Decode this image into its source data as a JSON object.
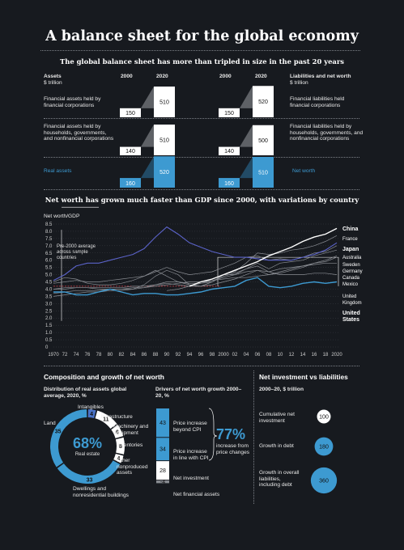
{
  "header": {
    "title": "A balance sheet for the global economy",
    "subtitle": "The global balance sheet has more than tripled in size in the past 20 years"
  },
  "balance": {
    "assets_heading": "Assets",
    "assets_unit": "$ trillion",
    "liab_heading": "Liabilities and net worth",
    "liab_unit": "$ trillion",
    "year_a": "2000",
    "year_b": "2020",
    "rows": [
      {
        "left_label": "Financial assets held by financial corporations",
        "a2000": 150,
        "a2020": 510,
        "right_label": "Financial liabilities held financial corporations",
        "l2000": 150,
        "l2020": 520
      },
      {
        "left_label": "Financial assets held by households, governments, and nonfinancial corporations",
        "a2000": 140,
        "a2020": 510,
        "right_label": "Financial liabilities held by households, governments, and nonfinancial corporations",
        "l2000": 140,
        "l2020": 500
      },
      {
        "left_label": "Real assets",
        "a2000": 160,
        "a2020": 520,
        "right_label": "Net worth",
        "l2000": 160,
        "l2020": 510
      }
    ],
    "accent": "#3d9ad1"
  },
  "networth": {
    "title": "Net worth has grown much faster than GDP since 2000, with variations by country",
    "axis_label": "Net worth/GDP",
    "avg_note": "Pre-2000 average across sample countries",
    "countries": [
      "China",
      "France",
      "Japan",
      "Australia",
      "Sweden",
      "Germany",
      "Canada",
      "Mexico",
      "United Kingdom",
      "United States"
    ]
  },
  "composition": {
    "title": "Composition and growth of net worth",
    "dist_title": "Distribution of real assets global average, 2020, %",
    "center_value": "68%",
    "center_label": "Real estate",
    "seg_labels": {
      "land": "Land",
      "intangibles": "Intangibles",
      "infrastructure": "Infrastructure",
      "machinery": "Machinery and equipment",
      "inventories": "Inventories",
      "other": "Other nonproduced assets",
      "dwellings": "Dwellings and nonresidential buildings"
    },
    "drivers_title": "Drivers of net worth growth 2000–20, %",
    "drivers": [
      {
        "value": 43,
        "label": "Price increase beyond CPI"
      },
      {
        "value": 34,
        "label": "Price increase in line with CPI"
      },
      {
        "value": 28,
        "label": "Net investment"
      },
      {
        "value": -4,
        "label": "Net financial assets"
      }
    ],
    "price_share": "77%",
    "price_share_label": "increase from price changes"
  },
  "netinv": {
    "title": "Net investment vs liabilities",
    "subtitle": "2000–20, $ trillion",
    "items": [
      {
        "label": "Cumulative net investment",
        "value": 100
      },
      {
        "label": "Growth in debt",
        "value": 180
      },
      {
        "label": "Growth in overall liabilities, including debt",
        "value": 360
      }
    ]
  },
  "chart_data": [
    {
      "type": "bar",
      "title": "The global balance sheet has more than tripled in size in the past 20 years",
      "ylabel": "$ trillion",
      "categories": [
        "2000",
        "2020"
      ],
      "series": [
        {
          "name": "Financial assets held by financial corporations",
          "values": [
            150,
            510
          ]
        },
        {
          "name": "Financial assets held by households, governments, and nonfinancial corporations",
          "values": [
            140,
            510
          ]
        },
        {
          "name": "Real assets",
          "values": [
            160,
            520
          ]
        },
        {
          "name": "Financial liabilities held financial corporations",
          "values": [
            150,
            520
          ]
        },
        {
          "name": "Financial liabilities held by households, governments, and nonfinancial corporations",
          "values": [
            140,
            500
          ]
        },
        {
          "name": "Net worth",
          "values": [
            160,
            510
          ]
        }
      ]
    },
    {
      "type": "line",
      "title": "Net worth has grown much faster than GDP since 2000, with variations by country",
      "ylabel": "Net worth/GDP",
      "x": [
        1970,
        1972,
        1974,
        1976,
        1978,
        1980,
        1982,
        1984,
        1986,
        1988,
        1990,
        1992,
        1994,
        1996,
        1998,
        2000,
        2002,
        2004,
        2006,
        2008,
        2010,
        2012,
        2014,
        2016,
        2018,
        2020
      ],
      "xticks": [
        "1970",
        "72",
        "74",
        "76",
        "78",
        "80",
        "82",
        "84",
        "86",
        "88",
        "90",
        "92",
        "94",
        "96",
        "98",
        "2000",
        "02",
        "04",
        "06",
        "08",
        "10",
        "12",
        "14",
        "16",
        "18",
        "2020"
      ],
      "yticks": [
        "0",
        "0.5",
        "1.0",
        "1.5",
        "2.0",
        "2.5",
        "3.0",
        "3.5",
        "4.0",
        "4.5",
        "5.0",
        "5.5",
        "6.0",
        "6.5",
        "7.0",
        "7.5",
        "8.0",
        "8.5"
      ],
      "ylim": [
        0,
        8.5
      ],
      "pre2000_average": 4.2,
      "series": [
        {
          "name": "China",
          "values": [
            null,
            null,
            null,
            null,
            null,
            null,
            null,
            null,
            null,
            null,
            null,
            null,
            4.2,
            4.5,
            4.7,
            5.0,
            5.3,
            5.6,
            5.9,
            6.3,
            6.6,
            6.9,
            7.3,
            7.6,
            7.8,
            8.2
          ]
        },
        {
          "name": "France",
          "values": [
            3.5,
            3.6,
            3.7,
            3.8,
            3.8,
            3.9,
            3.9,
            4.0,
            4.1,
            4.3,
            4.5,
            4.5,
            4.4,
            4.4,
            4.5,
            5.0,
            5.2,
            5.8,
            6.5,
            6.4,
            6.5,
            6.7,
            6.8,
            7.0,
            7.3,
            7.7
          ]
        },
        {
          "name": "Japan",
          "values": [
            4.6,
            5.0,
            5.6,
            5.8,
            5.8,
            6.0,
            6.2,
            6.4,
            6.8,
            7.6,
            8.3,
            7.8,
            7.2,
            6.9,
            6.6,
            6.4,
            6.2,
            6.2,
            6.1,
            6.0,
            6.0,
            6.0,
            6.2,
            6.4,
            6.7,
            7.2
          ]
        },
        {
          "name": "Australia",
          "values": [
            4.4,
            4.5,
            4.6,
            4.5,
            4.5,
            4.6,
            4.7,
            4.8,
            4.9,
            5.2,
            5.5,
            5.2,
            5.0,
            5.1,
            5.2,
            5.5,
            5.8,
            6.2,
            6.3,
            6.0,
            6.1,
            6.0,
            6.2,
            6.5,
            6.6,
            7.0
          ]
        },
        {
          "name": "Sweden",
          "values": [
            4.0,
            4.1,
            4.1,
            4.1,
            4.0,
            4.0,
            4.0,
            4.0,
            4.3,
            4.9,
            5.3,
            5.0,
            4.3,
            4.2,
            4.5,
            5.0,
            5.0,
            5.4,
            5.8,
            5.4,
            5.8,
            5.9,
            6.0,
            6.3,
            6.5,
            6.7
          ]
        },
        {
          "name": "Germany",
          "values": [
            3.7,
            3.8,
            3.9,
            3.9,
            3.9,
            4.0,
            4.0,
            4.1,
            4.1,
            4.2,
            4.3,
            4.4,
            4.5,
            4.5,
            4.6,
            4.7,
            4.8,
            4.8,
            4.9,
            5.0,
            5.1,
            5.3,
            5.5,
            5.8,
            6.0,
            6.3
          ]
        },
        {
          "name": "Canada",
          "values": [
            4.0,
            4.0,
            4.1,
            4.1,
            4.1,
            4.1,
            4.1,
            4.2,
            4.2,
            4.3,
            4.4,
            4.3,
            4.2,
            4.2,
            4.3,
            4.5,
            4.7,
            5.0,
            5.3,
            5.0,
            5.2,
            5.4,
            5.6,
            5.8,
            5.9,
            6.2
          ]
        },
        {
          "name": "Mexico",
          "values": [
            null,
            null,
            null,
            null,
            null,
            null,
            null,
            null,
            null,
            null,
            3.9,
            4.0,
            4.2,
            4.4,
            4.6,
            4.8,
            5.0,
            5.2,
            5.3,
            5.2,
            5.4,
            5.5,
            5.6,
            5.7,
            5.8,
            5.8
          ]
        },
        {
          "name": "United Kingdom",
          "values": [
            4.5,
            4.8,
            4.7,
            4.4,
            4.3,
            4.3,
            4.4,
            4.6,
            4.9,
            5.3,
            4.9,
            4.5,
            4.3,
            4.2,
            4.5,
            4.9,
            5.1,
            5.4,
            5.6,
            5.2,
            5.0,
            5.0,
            5.0,
            5.1,
            5.1,
            5.0
          ]
        },
        {
          "name": "United States",
          "values": [
            3.8,
            3.8,
            3.6,
            3.6,
            3.8,
            4.0,
            3.8,
            3.6,
            3.7,
            3.7,
            3.6,
            3.6,
            3.7,
            3.8,
            4.0,
            4.1,
            4.2,
            4.6,
            4.8,
            4.2,
            4.1,
            4.2,
            4.4,
            4.5,
            4.4,
            4.5
          ]
        }
      ]
    },
    {
      "type": "pie",
      "title": "Distribution of real assets global average, 2020, %",
      "labels": [
        "Intangibles",
        "Infrastructure",
        "Machinery and equipment",
        "Inventories",
        "Other nonproduced assets",
        "Dwellings and nonresidential buildings",
        "Land"
      ],
      "values": [
        4,
        11,
        6,
        8,
        4,
        33,
        35
      ]
    },
    {
      "type": "bar",
      "title": "Drivers of net worth growth 2000–20, %",
      "categories": [
        "Price increase beyond CPI",
        "Price increase in line with CPI",
        "Net investment",
        "Net financial assets"
      ],
      "values": [
        43,
        34,
        28,
        -4
      ]
    },
    {
      "type": "scatter",
      "title": "Net investment vs liabilities",
      "subtitle": "2000–20, $ trillion",
      "categories": [
        "Cumulative net investment",
        "Growth in debt",
        "Growth in overall liabilities, including debt"
      ],
      "values": [
        100,
        180,
        360
      ]
    }
  ]
}
